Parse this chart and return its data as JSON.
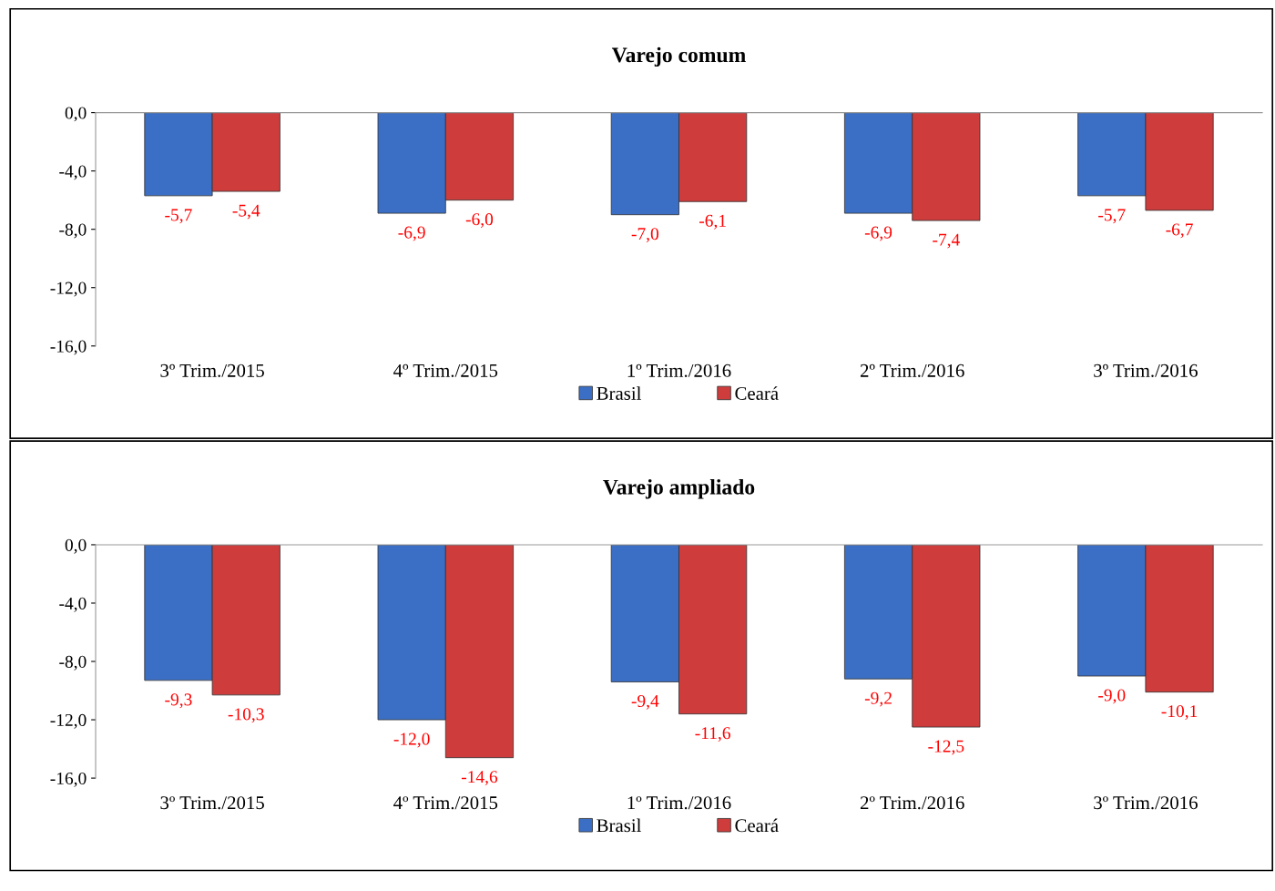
{
  "chart_data": [
    {
      "type": "bar",
      "title": "Varejo comum",
      "categories": [
        "3º Trim./2015",
        "4º Trim./2015",
        "1º Trim./2016",
        "2º Trim./2016",
        "3º Trim./2016"
      ],
      "series": [
        {
          "name": "Brasil",
          "color": "#3b6fc6",
          "values": [
            -5.7,
            -6.9,
            -7.0,
            -6.9,
            -5.7
          ],
          "value_labels": [
            "-5,7",
            "-6,9",
            "-7,0",
            "-6,9",
            "-5,7"
          ]
        },
        {
          "name": "Ceará",
          "color": "#cf3c3c",
          "values": [
            -5.4,
            -6.0,
            -6.1,
            -7.4,
            -6.7
          ],
          "value_labels": [
            "-5,4",
            "-6,0",
            "-6,1",
            "-7,4",
            "-6,7"
          ]
        }
      ],
      "ylim": [
        -16,
        0
      ],
      "yticks": [
        {
          "value": 0,
          "label": "0,0"
        },
        {
          "value": -4,
          "label": "-4,0"
        },
        {
          "value": -8,
          "label": "-8,0"
        },
        {
          "value": -12,
          "label": "-12,0"
        },
        {
          "value": -16,
          "label": "-16,0"
        }
      ],
      "grid": false,
      "legend": "bottom"
    },
    {
      "type": "bar",
      "title": "Varejo ampliado",
      "categories": [
        "3º Trim./2015",
        "4º Trim./2015",
        "1º Trim./2016",
        "2º Trim./2016",
        "3º Trim./2016"
      ],
      "series": [
        {
          "name": "Brasil",
          "color": "#3b6fc6",
          "values": [
            -9.3,
            -12.0,
            -9.4,
            -9.2,
            -9.0
          ],
          "value_labels": [
            "-9,3",
            "-12,0",
            "-9,4",
            "-9,2",
            "-9,0"
          ]
        },
        {
          "name": "Ceará",
          "color": "#cf3c3c",
          "values": [
            -10.3,
            -14.6,
            -11.6,
            -12.5,
            -10.1
          ],
          "value_labels": [
            "-10,3",
            "-14,6",
            "-11,6",
            "-12,5",
            "-10,1"
          ]
        }
      ],
      "ylim": [
        -16,
        0
      ],
      "yticks": [
        {
          "value": 0,
          "label": "0,0"
        },
        {
          "value": -4,
          "label": "-4,0"
        },
        {
          "value": -8,
          "label": "-8,0"
        },
        {
          "value": -12,
          "label": "-12,0"
        },
        {
          "value": -16,
          "label": "-16,0"
        }
      ],
      "grid": false,
      "legend": "bottom"
    }
  ]
}
